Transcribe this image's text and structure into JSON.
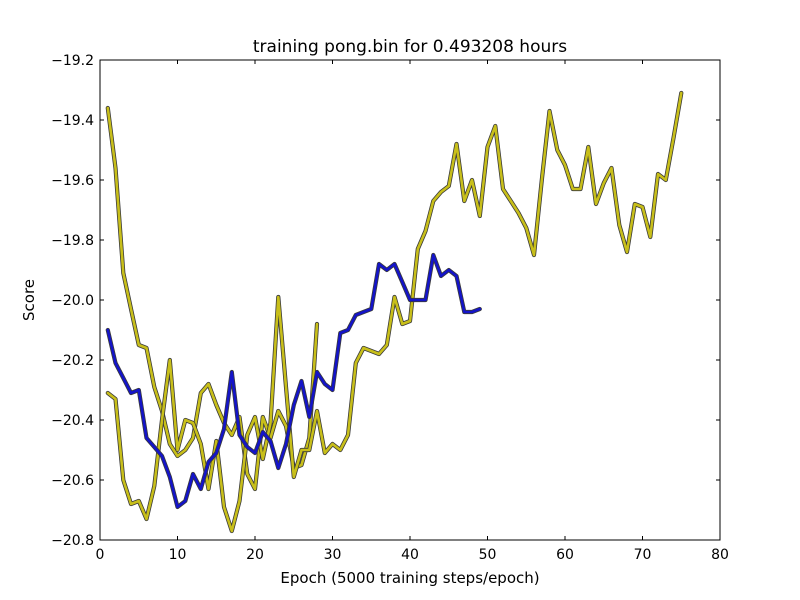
{
  "chart_data": {
    "type": "line",
    "title": "training pong.bin for  0.493208 hours",
    "xlabel": "Epoch (5000 training steps/epoch)",
    "ylabel": "Score",
    "xlim": [
      0,
      80
    ],
    "ylim": [
      -20.8,
      -19.2
    ],
    "xticks": [
      0,
      10,
      20,
      30,
      40,
      50,
      60,
      70,
      80
    ],
    "xtick_labels": [
      "0",
      "10",
      "20",
      "30",
      "40",
      "50",
      "60",
      "70",
      "80"
    ],
    "yticks": [
      -20.8,
      -20.6,
      -20.4,
      -20.2,
      -20.0,
      -19.8,
      -19.6,
      -19.4,
      -19.2
    ],
    "ytick_labels": [
      "−20.8",
      "−20.6",
      "−20.4",
      "−20.2",
      "−20.0",
      "−19.8",
      "−19.6",
      "−19.4",
      "−19.2"
    ],
    "grid": false,
    "series": [
      {
        "color": "#c8bf1a",
        "x": [
          1,
          2,
          3,
          4,
          5,
          6,
          7,
          8,
          9,
          10,
          11,
          12,
          13,
          14,
          15,
          16,
          17,
          18,
          19,
          20,
          21,
          22,
          23,
          24,
          25,
          26,
          27,
          28
        ],
        "y": [
          -19.36,
          -19.56,
          -19.91,
          -20.03,
          -20.15,
          -20.16,
          -20.29,
          -20.37,
          -20.48,
          -20.52,
          -20.5,
          -20.46,
          -20.31,
          -20.28,
          -20.35,
          -20.41,
          -20.45,
          -20.39,
          -20.58,
          -20.63,
          -20.39,
          -20.46,
          -20.37,
          -20.42,
          -20.56,
          -20.55,
          -20.46,
          -20.08
        ]
      },
      {
        "color": "#c8bf1a",
        "x": [
          1,
          2,
          3,
          4,
          5,
          6,
          7,
          8,
          9,
          10,
          11,
          12,
          13,
          14,
          15,
          16,
          17,
          18,
          19,
          20,
          21,
          22,
          23,
          24,
          25,
          26,
          27,
          28,
          29,
          30,
          31,
          32,
          33,
          34,
          35,
          36,
          37,
          38,
          39,
          40,
          41,
          42,
          43,
          44,
          45,
          46,
          47,
          48,
          49,
          50,
          51,
          52,
          53,
          54,
          55,
          56,
          57,
          58,
          59,
          60,
          61,
          62,
          63,
          64,
          65,
          66,
          67,
          68,
          69,
          70,
          71,
          72,
          73,
          74,
          75
        ],
        "y": [
          -20.31,
          -20.33,
          -20.6,
          -20.68,
          -20.67,
          -20.73,
          -20.62,
          -20.4,
          -20.2,
          -20.5,
          -20.4,
          -20.41,
          -20.48,
          -20.63,
          -20.47,
          -20.69,
          -20.77,
          -20.67,
          -20.45,
          -20.39,
          -20.53,
          -20.41,
          -19.99,
          -20.29,
          -20.59,
          -20.5,
          -20.5,
          -20.37,
          -20.51,
          -20.48,
          -20.5,
          -20.45,
          -20.21,
          -20.16,
          -20.17,
          -20.18,
          -20.15,
          -19.99,
          -20.08,
          -20.07,
          -19.83,
          -19.77,
          -19.67,
          -19.64,
          -19.62,
          -19.48,
          -19.67,
          -19.6,
          -19.72,
          -19.49,
          -19.42,
          -19.63,
          -19.67,
          -19.71,
          -19.76,
          -19.85,
          -19.6,
          -19.37,
          -19.5,
          -19.55,
          -19.63,
          -19.63,
          -19.49,
          -19.68,
          -19.61,
          -19.56,
          -19.75,
          -19.84,
          -19.68,
          -19.69,
          -19.79,
          -19.58,
          -19.6,
          -19.46,
          -19.31
        ]
      },
      {
        "color": "#1414c8",
        "x": [
          1,
          2,
          3,
          4,
          5,
          6,
          7,
          8,
          9,
          10,
          11,
          12,
          13,
          14,
          15,
          16,
          17,
          18,
          19,
          20,
          21,
          22,
          23,
          24,
          25,
          26,
          27,
          28,
          29,
          30,
          31,
          32,
          33,
          34,
          35,
          36,
          37,
          38,
          39,
          40,
          41,
          42,
          43,
          44,
          45,
          46,
          47,
          48,
          49
        ],
        "y": [
          -20.1,
          -20.21,
          -20.26,
          -20.31,
          -20.3,
          -20.46,
          -20.49,
          -20.52,
          -20.59,
          -20.69,
          -20.67,
          -20.58,
          -20.63,
          -20.54,
          -20.51,
          -20.43,
          -20.24,
          -20.45,
          -20.49,
          -20.51,
          -20.44,
          -20.47,
          -20.56,
          -20.48,
          -20.35,
          -20.27,
          -20.39,
          -20.24,
          -20.28,
          -20.3,
          -20.11,
          -20.1,
          -20.05,
          -20.04,
          -20.03,
          -19.88,
          -19.9,
          -19.88,
          -19.94,
          -20.0,
          -20.0,
          -20.0,
          -19.85,
          -19.92,
          -19.9,
          -19.92,
          -20.04,
          -20.04,
          -20.03
        ]
      }
    ]
  }
}
